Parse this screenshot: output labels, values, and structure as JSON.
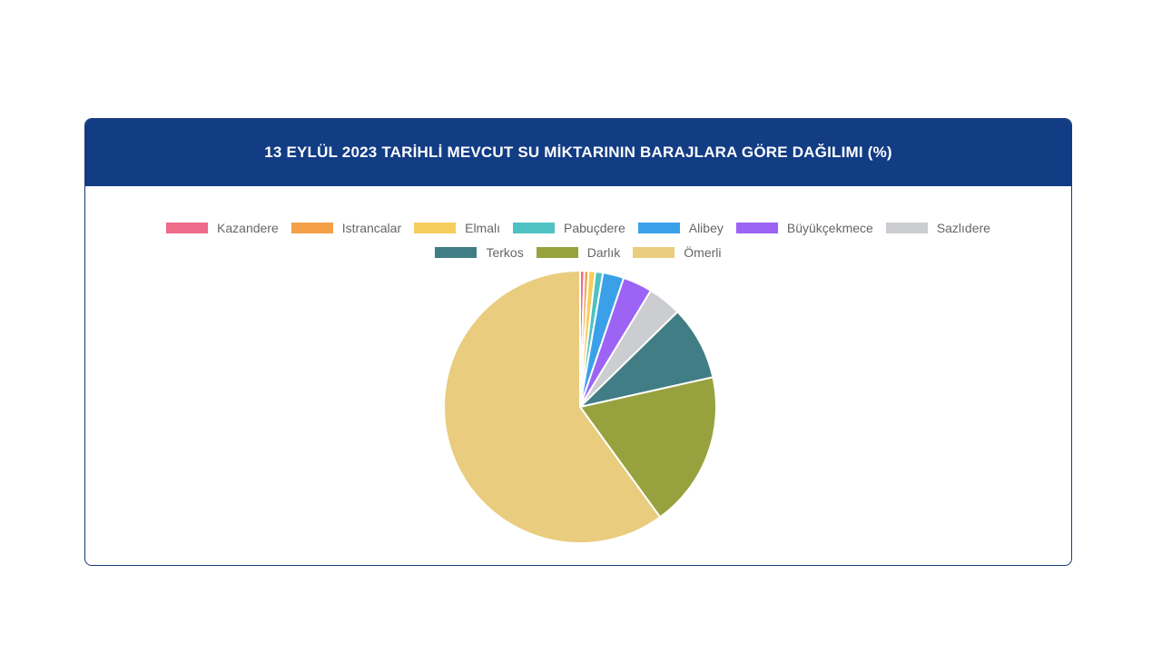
{
  "card": {
    "title": "13 EYLÜL 2023 TARİHLİ MEVCUT SU MİKTARININ BARAJLARA GÖRE DAĞILIMI (%)"
  },
  "chart_data": {
    "type": "pie",
    "title": "13 EYLÜL 2023 TARİHLİ MEVCUT SU MİKTARININ BARAJLARA GÖRE DAĞILIMI (%)",
    "legend_position": "top",
    "slice_border_color": "#ffffff",
    "start_angle": "top, clockwise",
    "categories": [
      "Kazandere",
      "Istrancalar",
      "Elmalı",
      "Pabuçdere",
      "Alibey",
      "Büyükçekmece",
      "Sazlıdere",
      "Terkos",
      "Darlık",
      "Ömerli"
    ],
    "values": [
      0.5,
      0.5,
      0.8,
      0.9,
      2.5,
      3.5,
      4.0,
      8.8,
      18.5,
      60.0
    ],
    "colors": [
      "#ef6b8a",
      "#f5a046",
      "#f7cd5d",
      "#4ec2c2",
      "#3aa1e8",
      "#9c63f5",
      "#cbcdd1",
      "#417d84",
      "#97a23e",
      "#e9cc7e"
    ]
  }
}
